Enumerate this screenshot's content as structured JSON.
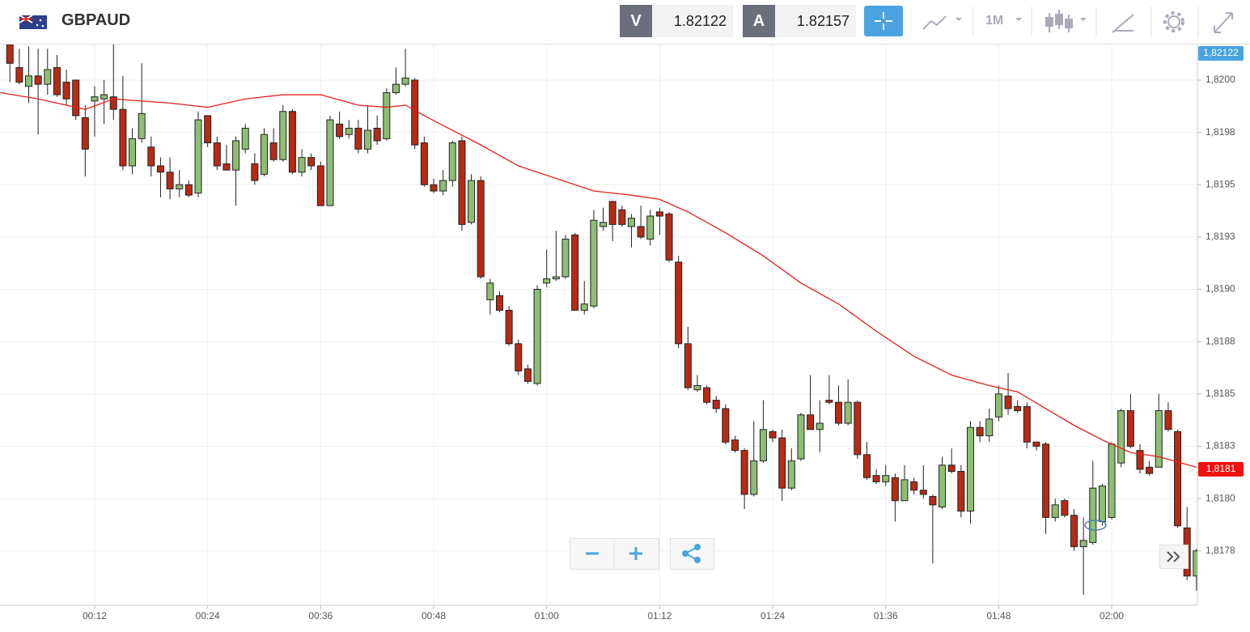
{
  "header": {
    "symbol": "GBPAUD",
    "bid_label": "V",
    "bid": "1.82122",
    "ask_label": "A",
    "ask": "1.82157",
    "timeframe": "1M"
  },
  "chart_data": {
    "type": "candlestick",
    "x": [
      3,
      4,
      5,
      6,
      7,
      8,
      9,
      10,
      11,
      12,
      13,
      14,
      15,
      16,
      17,
      18,
      19,
      20,
      21,
      22,
      23,
      24,
      25,
      26,
      27,
      28,
      29,
      30,
      31,
      32,
      33,
      34,
      35,
      36,
      37,
      38,
      39,
      40,
      41,
      42,
      43,
      44,
      45,
      46,
      47,
      48,
      49,
      50,
      51,
      52,
      53,
      54,
      55,
      56,
      57,
      58,
      59,
      60,
      61,
      62,
      63,
      64,
      65,
      66,
      67,
      68,
      69,
      70,
      71,
      72,
      73,
      74,
      75,
      76,
      77,
      78,
      79,
      80,
      81,
      82,
      83,
      84,
      85,
      86,
      87,
      88,
      89,
      90,
      91,
      92,
      93,
      94,
      95,
      96,
      97,
      98,
      99,
      100,
      101,
      102,
      103,
      104,
      105,
      106,
      107,
      108,
      109,
      110,
      111,
      112,
      113,
      114,
      115,
      116,
      117,
      118,
      119,
      120,
      121,
      122,
      123,
      124,
      125,
      126,
      127,
      128,
      129
    ],
    "ohlc": [
      [
        1.82017,
        1.82017,
        1.81999,
        1.82008
      ],
      [
        1.82006,
        1.82015,
        1.81998,
        1.81999
      ],
      [
        1.81997,
        1.82016,
        1.81989,
        1.82002
      ],
      [
        1.82002,
        1.82015,
        1.81974,
        1.81998
      ],
      [
        1.81998,
        1.82015,
        1.81993,
        1.82005
      ],
      [
        1.82006,
        1.82012,
        1.81992,
        1.81993
      ],
      [
        1.81999,
        1.82005,
        1.81988,
        1.81991
      ],
      [
        1.82,
        1.82,
        1.81981,
        1.81983
      ],
      [
        1.81982,
        1.81988,
        1.81954,
        1.81967
      ],
      [
        1.8199,
        1.81997,
        1.81973,
        1.81992
      ],
      [
        1.81991,
        1.82,
        1.81979,
        1.81993
      ],
      [
        1.81992,
        1.82017,
        1.81981,
        1.81986
      ],
      [
        1.81986,
        1.82002,
        1.81957,
        1.81959
      ],
      [
        1.81959,
        1.81977,
        1.81955,
        1.81972
      ],
      [
        1.81972,
        1.82008,
        1.8197,
        1.81984
      ],
      [
        1.81968,
        1.81973,
        1.81954,
        1.81959
      ],
      [
        1.81959,
        1.81963,
        1.81944,
        1.81956
      ],
      [
        1.81956,
        1.81963,
        1.81943,
        1.81948
      ],
      [
        1.81948,
        1.81957,
        1.81944,
        1.8195
      ],
      [
        1.8195,
        1.81952,
        1.81944,
        1.81945
      ],
      [
        1.81946,
        1.81985,
        1.81944,
        1.81981
      ],
      [
        1.81983,
        1.81983,
        1.81968,
        1.8197
      ],
      [
        1.8197,
        1.81973,
        1.81957,
        1.81959
      ],
      [
        1.8196,
        1.81969,
        1.81957,
        1.81957
      ],
      [
        1.81957,
        1.81973,
        1.8194,
        1.81971
      ],
      [
        1.81967,
        1.81979,
        1.81965,
        1.81977
      ],
      [
        1.8196,
        1.81965,
        1.8195,
        1.81952
      ],
      [
        1.81955,
        1.81977,
        1.81954,
        1.81974
      ],
      [
        1.8197,
        1.81977,
        1.81961,
        1.81962
      ],
      [
        1.81962,
        1.81988,
        1.81961,
        1.81985
      ],
      [
        1.81985,
        1.81986,
        1.81955,
        1.81956
      ],
      [
        1.81956,
        1.81967,
        1.81954,
        1.81963
      ],
      [
        1.81963,
        1.81965,
        1.81957,
        1.81959
      ],
      [
        1.81959,
        1.81961,
        1.8194,
        1.8194
      ],
      [
        1.8194,
        1.81983,
        1.8194,
        1.81981
      ],
      [
        1.81979,
        1.81985,
        1.81972,
        1.81973
      ],
      [
        1.81974,
        1.81981,
        1.81972,
        1.81977
      ],
      [
        1.81977,
        1.81981,
        1.81965,
        1.81967
      ],
      [
        1.81967,
        1.81988,
        1.81965,
        1.81976
      ],
      [
        1.81977,
        1.81983,
        1.81969,
        1.81971
      ],
      [
        1.81972,
        1.81996,
        1.81971,
        1.81994
      ],
      [
        1.81994,
        1.82006,
        1.81993,
        1.81998
      ],
      [
        1.81998,
        1.82015,
        1.81997,
        1.82001
      ],
      [
        1.82,
        1.82001,
        1.81967,
        1.81969
      ],
      [
        1.8197,
        1.81973,
        1.81949,
        1.8195
      ],
      [
        1.8195,
        1.81953,
        1.81946,
        1.81947
      ],
      [
        1.81947,
        1.81957,
        1.81945,
        1.81952
      ],
      [
        1.81952,
        1.81971,
        1.81949,
        1.8197
      ],
      [
        1.81971,
        1.81973,
        1.81928,
        1.81931
      ],
      [
        1.81932,
        1.81955,
        1.81931,
        1.81952
      ],
      [
        1.81952,
        1.81954,
        1.81905,
        1.81906
      ],
      [
        1.81895,
        1.81905,
        1.81888,
        1.81903
      ],
      [
        1.81897,
        1.81899,
        1.81889,
        1.8189
      ],
      [
        1.8189,
        1.81892,
        1.81873,
        1.81874
      ],
      [
        1.81874,
        1.81876,
        1.81859,
        1.81861
      ],
      [
        1.81862,
        1.81864,
        1.81855,
        1.81856
      ],
      [
        1.81855,
        1.81902,
        1.81854,
        1.819
      ],
      [
        1.81903,
        1.81919,
        1.81901,
        1.81905
      ],
      [
        1.81905,
        1.81928,
        1.81904,
        1.81906
      ],
      [
        1.81906,
        1.81926,
        1.81905,
        1.81924
      ],
      [
        1.81926,
        1.81927,
        1.8189,
        1.8189
      ],
      [
        1.8189,
        1.81904,
        1.81888,
        1.81893
      ],
      [
        1.81892,
        1.81938,
        1.81891,
        1.81933
      ],
      [
        1.8193,
        1.81939,
        1.81928,
        1.81932
      ],
      [
        1.81942,
        1.81942,
        1.81923,
        1.81931
      ],
      [
        1.81938,
        1.8194,
        1.8193,
        1.81931
      ],
      [
        1.8193,
        1.81936,
        1.8192,
        1.81934
      ],
      [
        1.8193,
        1.8194,
        1.81924,
        1.81925
      ],
      [
        1.81924,
        1.81938,
        1.81921,
        1.81935
      ],
      [
        1.81937,
        1.81939,
        1.81926,
        1.81935
      ],
      [
        1.81936,
        1.81937,
        1.81913,
        1.81914
      ],
      [
        1.81913,
        1.81916,
        1.81872,
        1.81874
      ],
      [
        1.81874,
        1.81882,
        1.81852,
        1.81853
      ],
      [
        1.81852,
        1.81859,
        1.81851,
        1.81854
      ],
      [
        1.81853,
        1.81854,
        1.81845,
        1.81846
      ],
      [
        1.81847,
        1.81849,
        1.81841,
        1.81843
      ],
      [
        1.81843,
        1.81845,
        1.81826,
        1.81827
      ],
      [
        1.81828,
        1.8183,
        1.81822,
        1.81823
      ],
      [
        1.81823,
        1.81824,
        1.81795,
        1.81802
      ],
      [
        1.81802,
        1.81837,
        1.81801,
        1.81818
      ],
      [
        1.81818,
        1.81847,
        1.81817,
        1.81833
      ],
      [
        1.81832,
        1.81833,
        1.81827,
        1.81829
      ],
      [
        1.81829,
        1.81833,
        1.81799,
        1.81805
      ],
      [
        1.81805,
        1.81824,
        1.81804,
        1.81818
      ],
      [
        1.81819,
        1.81841,
        1.81818,
        1.8184
      ],
      [
        1.8184,
        1.81859,
        1.81833,
        1.81833
      ],
      [
        1.81833,
        1.81847,
        1.81822,
        1.81836
      ],
      [
        1.81847,
        1.81859,
        1.81845,
        1.81846
      ],
      [
        1.81846,
        1.81854,
        1.81835,
        1.81836
      ],
      [
        1.81836,
        1.81857,
        1.81835,
        1.81846
      ],
      [
        1.81846,
        1.81847,
        1.81819,
        1.81821
      ],
      [
        1.81821,
        1.81827,
        1.81809,
        1.8181
      ],
      [
        1.81811,
        1.81814,
        1.81807,
        1.81808
      ],
      [
        1.81808,
        1.81816,
        1.81806,
        1.81811
      ],
      [
        1.8181,
        1.81812,
        1.81789,
        1.81799
      ],
      [
        1.81799,
        1.81816,
        1.81799,
        1.81809
      ],
      [
        1.81808,
        1.8181,
        1.81802,
        1.81804
      ],
      [
        1.81804,
        1.81816,
        1.818,
        1.81802
      ],
      [
        1.81801,
        1.81802,
        1.81769,
        1.81797
      ],
      [
        1.81796,
        1.8182,
        1.81795,
        1.81816
      ],
      [
        1.81816,
        1.81824,
        1.81812,
        1.81813
      ],
      [
        1.81813,
        1.81816,
        1.81791,
        1.81794
      ],
      [
        1.81794,
        1.81837,
        1.81788,
        1.81834
      ],
      [
        1.81834,
        1.81837,
        1.81827,
        1.8183
      ],
      [
        1.8183,
        1.81843,
        1.81827,
        1.81838
      ],
      [
        1.81839,
        1.81854,
        1.81837,
        1.8185
      ],
      [
        1.81849,
        1.8186,
        1.8184,
        1.81843
      ],
      [
        1.81844,
        1.81847,
        1.81841,
        1.81842
      ],
      [
        1.81844,
        1.81846,
        1.81824,
        1.81827
      ],
      [
        1.81827,
        1.81827,
        1.81823,
        1.81825
      ],
      [
        1.81826,
        1.81827,
        1.81783,
        1.81791
      ],
      [
        1.81791,
        1.818,
        1.81789,
        1.81797
      ],
      [
        1.81799,
        1.818,
        1.81791,
        1.81792
      ],
      [
        1.81792,
        1.81795,
        1.81775,
        1.81777
      ],
      [
        1.81777,
        1.81791,
        1.81754,
        1.8178
      ],
      [
        1.81779,
        1.81818,
        1.81778,
        1.81805
      ],
      [
        1.81789,
        1.81807,
        1.81787,
        1.81806
      ],
      [
        1.81791,
        1.81827,
        1.8179,
        1.81826
      ],
      [
        1.81817,
        1.81843,
        1.81815,
        1.81842
      ],
      [
        1.81842,
        1.8185,
        1.81824,
        1.81825
      ],
      [
        1.81823,
        1.81826,
        1.81812,
        1.81814
      ],
      [
        1.81815,
        1.81818,
        1.81811,
        1.81812
      ],
      [
        1.81815,
        1.8185,
        1.81815,
        1.81842
      ],
      [
        1.81842,
        1.81846,
        1.81832,
        1.81833
      ],
      [
        1.81832,
        1.81833,
        1.81786,
        1.81787
      ],
      [
        1.81786,
        1.81796,
        1.81761,
        1.81763
      ],
      [
        1.81763,
        1.81776,
        1.81756,
        1.81775
      ]
    ],
    "up_color": "#8dbf73",
    "down_color": "#b82a14",
    "moving_average": {
      "color": "#e8201a",
      "x": [
        2,
        6,
        11,
        14,
        20,
        24,
        28,
        32,
        36,
        40,
        43,
        45,
        47,
        50,
        53,
        57,
        61,
        65,
        69,
        72,
        75,
        79,
        83,
        87,
        91,
        95,
        99,
        103,
        107,
        110,
        113,
        116,
        119,
        122,
        125,
        129
      ],
      "values": [
        1.81994,
        1.81991,
        1.81986,
        1.81991,
        1.81989,
        1.81987,
        1.81991,
        1.81993,
        1.81993,
        1.81988,
        1.81987,
        1.81988,
        1.81983,
        1.81976,
        1.81969,
        1.81959,
        1.81953,
        1.81947,
        1.81945,
        1.81943,
        1.81937,
        1.81927,
        1.81916,
        1.81903,
        1.81893,
        1.8188,
        1.81868,
        1.81859,
        1.81854,
        1.81851,
        1.81843,
        1.81835,
        1.81828,
        1.81822,
        1.8182,
        1.81815
      ]
    },
    "xlim": [
      1.95,
      129.1
    ],
    "xticks": [
      {
        "value": 12,
        "label": "00:12"
      },
      {
        "value": 24,
        "label": "00:24"
      },
      {
        "value": 36,
        "label": "00:36"
      },
      {
        "value": 48,
        "label": "00:48"
      },
      {
        "value": 60,
        "label": "01:00"
      },
      {
        "value": 72,
        "label": "01:12"
      },
      {
        "value": 84,
        "label": "01:24"
      },
      {
        "value": 96,
        "label": "01:36"
      },
      {
        "value": 108,
        "label": "01:48"
      },
      {
        "value": 120,
        "label": "02:00"
      }
    ],
    "ylim": [
      1.81749,
      1.82017
    ],
    "yticks": [
      {
        "value": 1.82,
        "label": "1,8200"
      },
      {
        "value": 1.81975,
        "label": "1,8198"
      },
      {
        "value": 1.8195,
        "label": "1,8195"
      },
      {
        "value": 1.81925,
        "label": "1,8193"
      },
      {
        "value": 1.819,
        "label": "1,8190"
      },
      {
        "value": 1.81875,
        "label": "1,8188"
      },
      {
        "value": 1.8185,
        "label": "1,8185"
      },
      {
        "value": 1.81825,
        "label": "1,8183"
      },
      {
        "value": 1.818,
        "label": "1,8180"
      },
      {
        "value": 1.81775,
        "label": "1,8178"
      }
    ],
    "grid": true,
    "price_tags": [
      {
        "value": 1.82122,
        "label": "1,82122",
        "color": "#4aa3df"
      },
      {
        "value": 1.81814,
        "label": "1,8181",
        "color": "#ee1111"
      }
    ]
  }
}
